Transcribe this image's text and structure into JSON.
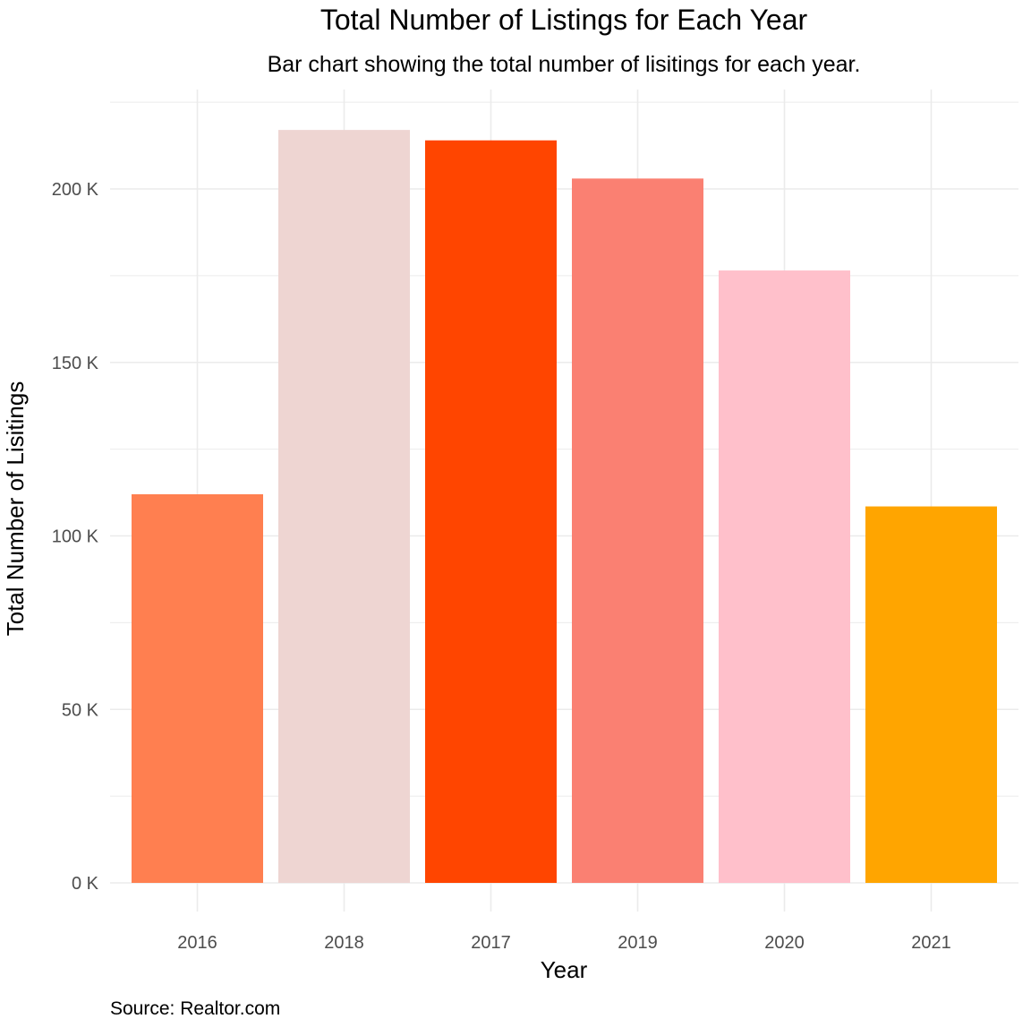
{
  "chart_data": {
    "type": "bar",
    "title": "Total Number of Listings for Each Year",
    "subtitle": "Bar chart showing the total number of lisitings for each year.",
    "xlabel": "Year",
    "ylabel": "Total Number of Lisitings",
    "caption": "Source: Realtor.com",
    "categories": [
      "2016",
      "2018",
      "2017",
      "2019",
      "2020",
      "2021"
    ],
    "values": [
      112000,
      217000,
      214000,
      203000,
      176500,
      108500
    ],
    "colors": [
      "#FF7F50",
      "#EED5D2",
      "#FF4500",
      "#FA8072",
      "#FFC0CB",
      "#FFA500"
    ],
    "y_ticks": [
      0,
      50000,
      100000,
      150000,
      200000
    ],
    "y_tick_labels": [
      "0 K",
      "50 K",
      "100 K",
      "150 K",
      "200 K"
    ],
    "ylim": [
      0,
      225000
    ],
    "grid": true,
    "legend": "none"
  }
}
